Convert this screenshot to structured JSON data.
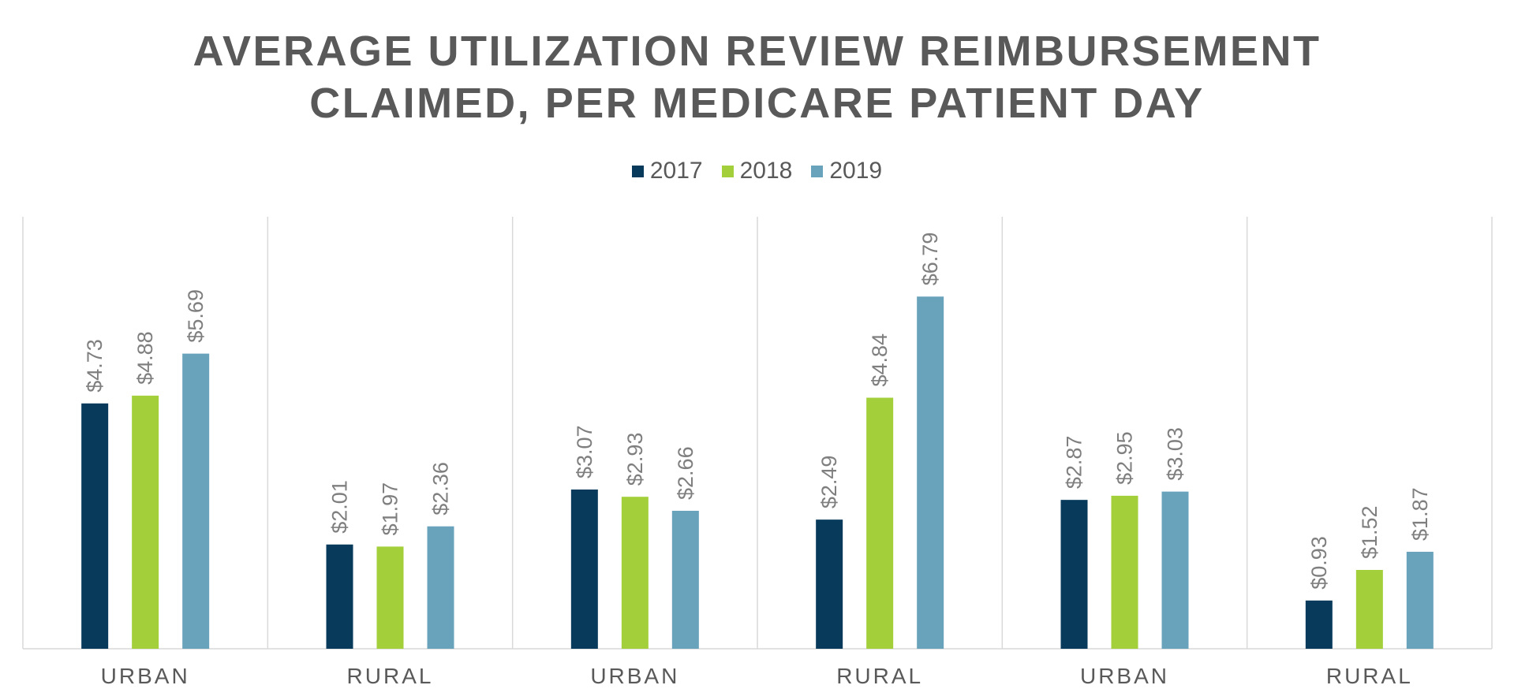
{
  "chart_data": {
    "type": "bar",
    "title_lines": [
      "AVERAGE UTILIZATION REVIEW REIMBURSEMENT",
      "CLAIMED, PER MEDICARE PATIENT DAY"
    ],
    "categories": [
      "URBAN",
      "RURAL",
      "URBAN",
      "RURAL",
      "URBAN",
      "RURAL"
    ],
    "series": [
      {
        "name": "2017",
        "color": "#073a5b",
        "values": [
          4.73,
          2.01,
          3.07,
          2.49,
          2.87,
          0.93
        ],
        "labels": [
          "$4.73",
          "$2.01",
          "$3.07",
          "$2.49",
          "$2.87",
          "$0.93"
        ]
      },
      {
        "name": "2018",
        "color": "#a2cf3a",
        "values": [
          4.88,
          1.97,
          2.93,
          4.84,
          2.95,
          1.52
        ],
        "labels": [
          "$4.88",
          "$1.97",
          "$2.93",
          "$4.84",
          "$2.95",
          "$1.52"
        ]
      },
      {
        "name": "2019",
        "color": "#69a3bb",
        "values": [
          5.69,
          2.36,
          2.66,
          6.79,
          3.03,
          1.87
        ],
        "labels": [
          "$5.69",
          "$2.36",
          "$2.66",
          "$6.79",
          "$3.03",
          "$1.87"
        ]
      }
    ],
    "xlabel": "",
    "ylabel": "",
    "ylim": [
      0,
      8
    ],
    "legend_position": "top-center",
    "grid": "vertical separators between categories",
    "axis_color": "#d9d9d9",
    "text_color": "#595959",
    "label_color": "#7f7f7f"
  }
}
